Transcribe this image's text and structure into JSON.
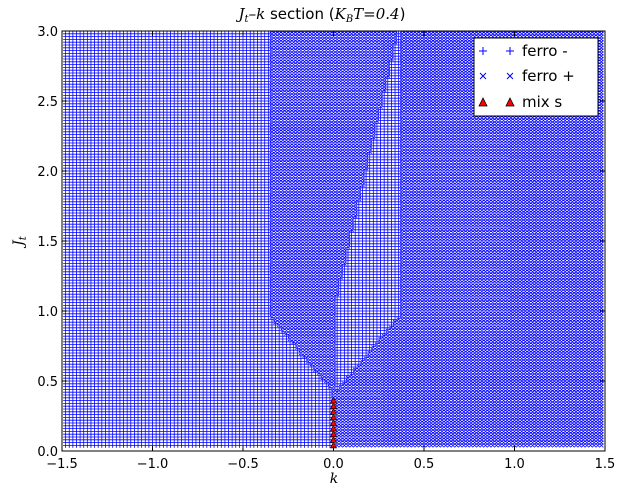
{
  "chart_data": {
    "type": "scatter",
    "title": {
      "jt": "J",
      "jt_sub": "t",
      "dash_k": "–k",
      "section": " section (",
      "kb": "K",
      "kb_sub": "B",
      "t_eq": "T=0.4",
      "close": ")"
    },
    "xlabel": "k",
    "ylabel": {
      "main": "J",
      "sub": "t"
    },
    "xlim": [
      -1.5,
      1.5
    ],
    "ylim": [
      0.0,
      3.0
    ],
    "xticks": [
      "−1.5",
      "−1.0",
      "−0.5",
      "0.0",
      "0.5",
      "1.0",
      "1.5"
    ],
    "xtick_values": [
      -1.5,
      -1.0,
      -0.5,
      0.0,
      0.5,
      1.0,
      1.5
    ],
    "yticks": [
      "0.0",
      "0.5",
      "1.0",
      "1.5",
      "2.0",
      "2.5",
      "3.0"
    ],
    "ytick_values": [
      0.0,
      0.5,
      1.0,
      1.5,
      2.0,
      2.5,
      3.0
    ],
    "grid": {
      "x_step": 0.02,
      "y_step": 0.02,
      "x_start": -1.48,
      "y_start": 0.04
    },
    "legend_position": "top-right",
    "series": [
      {
        "name": "ferro -",
        "marker": "plus",
        "color": "#0000ff",
        "region": "k < 0 and J_t >= -1.6 k + 0.4 (below ~0.4: all k < 0); plus a strip 0 < k <= 0.35 with J_t >= 0.4 + k"
      },
      {
        "name": "ferro +",
        "marker": "x",
        "color": "#0000ff",
        "region": "k > 0 outside strip; plus -0.35 <= k < 0 with J_t between 1.0 and a line above; k = 0.35..1.5 all J_t"
      },
      {
        "name": "mix s",
        "marker": "triangle",
        "color": "#ff0000",
        "points": [
          [
            0.0,
            0.04
          ],
          [
            0.0,
            0.08
          ],
          [
            0.0,
            0.12
          ],
          [
            0.0,
            0.16
          ],
          [
            0.0,
            0.2
          ],
          [
            0.0,
            0.24
          ],
          [
            0.0,
            0.28
          ],
          [
            0.0,
            0.32
          ],
          [
            0.0,
            0.36
          ]
        ]
      }
    ],
    "legend_entries": [
      "ferro -",
      "ferro +",
      "mix s"
    ]
  }
}
